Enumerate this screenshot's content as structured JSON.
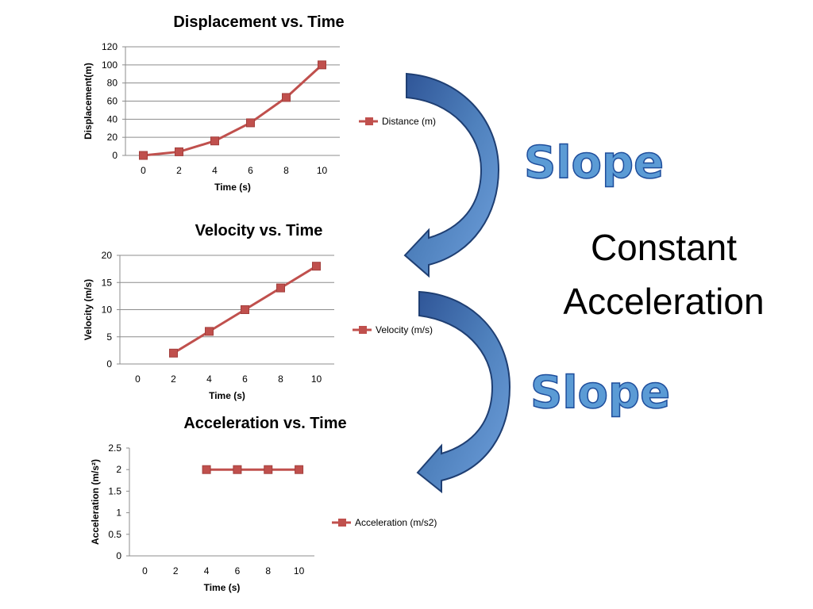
{
  "chart_data": [
    {
      "type": "line",
      "title": "Displacement vs. Time",
      "xlabel": "Time (s)",
      "ylabel": "Displacement(m)",
      "x_ticks": [
        "0",
        "2",
        "4",
        "6",
        "8",
        "10"
      ],
      "y_ticks": [
        "0",
        "20",
        "40",
        "60",
        "80",
        "100",
        "120"
      ],
      "xlim": [
        0,
        10
      ],
      "ylim": [
        0,
        120
      ],
      "series": [
        {
          "name": "Distance (m)",
          "x": [
            0,
            2,
            4,
            6,
            8,
            10
          ],
          "y": [
            0,
            4,
            16,
            36,
            64,
            100
          ]
        }
      ],
      "legend": "right",
      "grid": true
    },
    {
      "type": "line",
      "title": "Velocity vs. Time",
      "xlabel": "Time (s)",
      "ylabel": "Velocity (m/s)",
      "x_ticks": [
        "0",
        "2",
        "4",
        "6",
        "8",
        "10"
      ],
      "y_ticks": [
        "0",
        "5",
        "10",
        "15",
        "20"
      ],
      "xlim": [
        0,
        10
      ],
      "ylim": [
        0,
        20
      ],
      "series": [
        {
          "name": "Velocity (m/s)",
          "x": [
            2,
            4,
            6,
            8,
            10
          ],
          "y": [
            2,
            6,
            10,
            14,
            18
          ]
        }
      ],
      "legend": "right",
      "grid": true
    },
    {
      "type": "line",
      "title": "Acceleration vs. Time",
      "xlabel": "Time (s)",
      "ylabel": "Acceleration (m/s²)",
      "x_ticks": [
        "0",
        "2",
        "4",
        "6",
        "8",
        "10"
      ],
      "y_ticks": [
        "0",
        "0.5",
        "1",
        "1.5",
        "2",
        "2.5"
      ],
      "xlim": [
        0,
        10
      ],
      "ylim": [
        0,
        2.5
      ],
      "series": [
        {
          "name": "Acceleration (m/s2)",
          "x": [
            4,
            6,
            8,
            10
          ],
          "y": [
            2,
            2,
            2,
            2
          ]
        }
      ],
      "legend": "right",
      "grid": false
    }
  ],
  "annotations": {
    "slope_top": "Slope",
    "slope_bottom": "Slope",
    "constant_line1": "Constant",
    "constant_line2": "Acceleration"
  },
  "colors": {
    "series_line": "#c0504d",
    "arrow_fill": "#4f81bd",
    "arrow_dark": "#1f3f73",
    "slope_text": "#5b9bd5"
  }
}
